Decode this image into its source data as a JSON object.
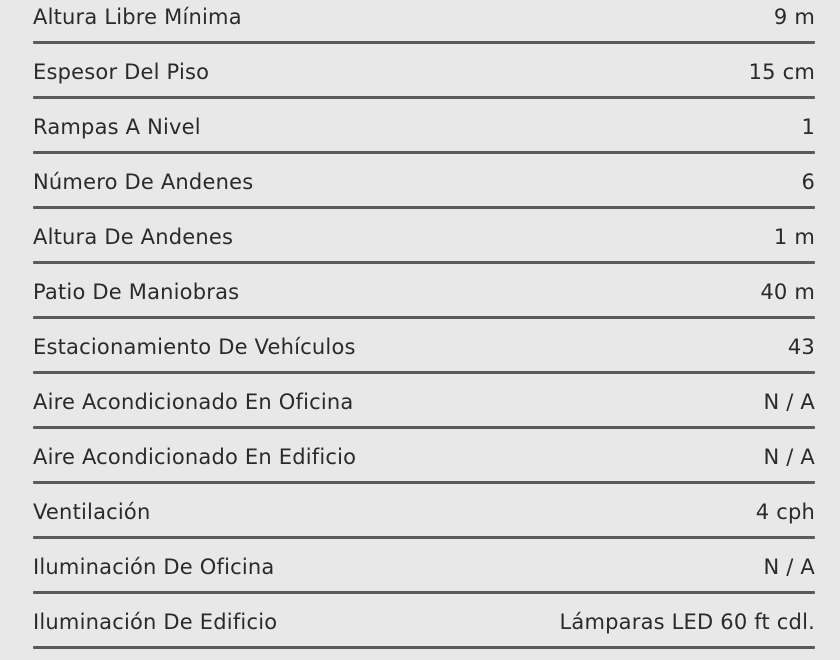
{
  "specs": [
    {
      "label": "Altura Libre Mínima",
      "value": "9 m"
    },
    {
      "label": "Espesor Del Piso",
      "value": "15 cm"
    },
    {
      "label": "Rampas A Nivel",
      "value": "1"
    },
    {
      "label": "Número De Andenes",
      "value": "6"
    },
    {
      "label": "Altura De Andenes",
      "value": "1 m"
    },
    {
      "label": "Patio De Maniobras",
      "value": "40 m"
    },
    {
      "label": "Estacionamiento De Vehículos",
      "value": "43"
    },
    {
      "label": "Aire Acondicionado En Oficina",
      "value": "N / A"
    },
    {
      "label": "Aire Acondicionado En Edificio",
      "value": "N / A"
    },
    {
      "label": "Ventilación",
      "value": "4 cph"
    },
    {
      "label": "Iluminación De Oficina",
      "value": "N / A"
    },
    {
      "label": "Iluminación De Edificio",
      "value": "Lámparas LED 60 ft cdl."
    }
  ]
}
